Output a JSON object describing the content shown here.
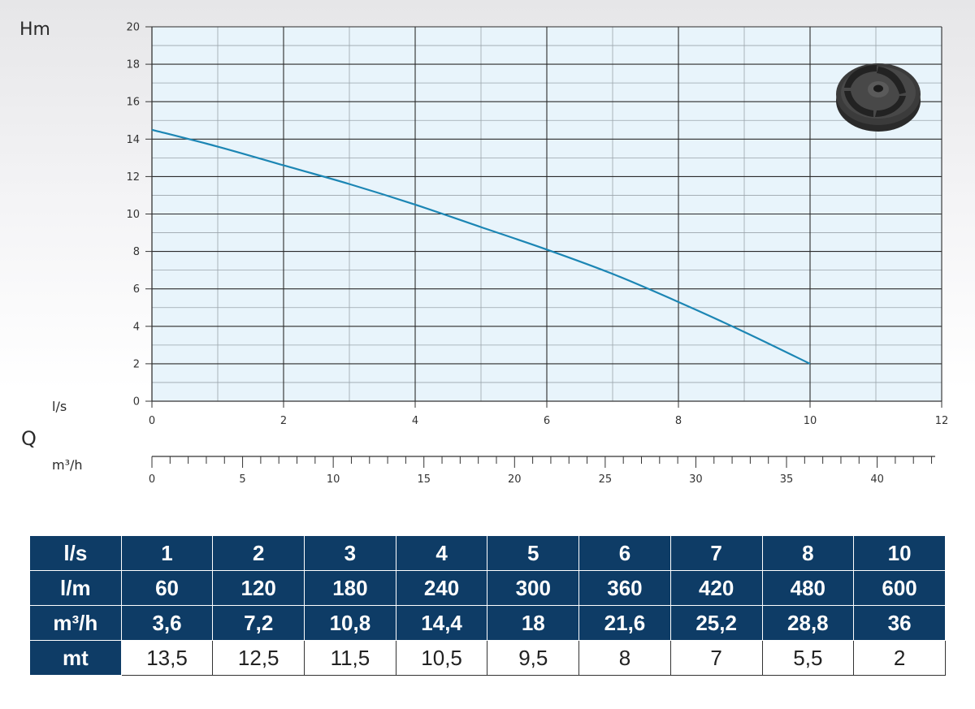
{
  "chart_data": {
    "type": "line",
    "ylabel": "Hm",
    "xlabel_primary": "l/s",
    "xlabel_group": "Q",
    "xlabel_secondary": "m³/h",
    "ylim": [
      0,
      20
    ],
    "y_ticks": [
      "0",
      "2",
      "4",
      "6",
      "8",
      "10",
      "12",
      "14",
      "16",
      "18",
      "20"
    ],
    "xlim": [
      0,
      12
    ],
    "x_ticks": [
      "0",
      "2",
      "4",
      "6",
      "8",
      "10",
      "12"
    ],
    "x2lim": [
      0,
      43.2
    ],
    "x2_ticks": [
      "0",
      "5",
      "10",
      "15",
      "20",
      "25",
      "30",
      "35",
      "40"
    ],
    "grid": true,
    "series": [
      {
        "color": "#1c86b4",
        "x": [
          0,
          1,
          2,
          3,
          4,
          5,
          6,
          7,
          8,
          9,
          10
        ],
        "y": [
          14.5,
          13.6,
          12.6,
          11.6,
          10.5,
          9.3,
          8.1,
          6.8,
          5.3,
          3.7,
          2.0
        ]
      }
    ]
  },
  "image": {
    "icon": "impeller-icon"
  },
  "table": {
    "rows": [
      {
        "head": "l/s",
        "cells": [
          "1",
          "2",
          "3",
          "4",
          "5",
          "6",
          "7",
          "8",
          "10"
        ]
      },
      {
        "head": "l/m",
        "cells": [
          "60",
          "120",
          "180",
          "240",
          "300",
          "360",
          "420",
          "480",
          "600"
        ]
      },
      {
        "head": "m³/h",
        "cells": [
          "3,6",
          "7,2",
          "10,8",
          "14,4",
          "18",
          "21,6",
          "25,2",
          "28,8",
          "36"
        ]
      },
      {
        "head": "mt",
        "cells": [
          "13,5",
          "12,5",
          "11,5",
          "10,5",
          "9,5",
          "8",
          "7",
          "5,5",
          "2"
        ]
      }
    ]
  },
  "colors": {
    "plot_bg": "#e8f4fb",
    "header_bg": "#0e3c66",
    "curve": "#1c86b4"
  }
}
